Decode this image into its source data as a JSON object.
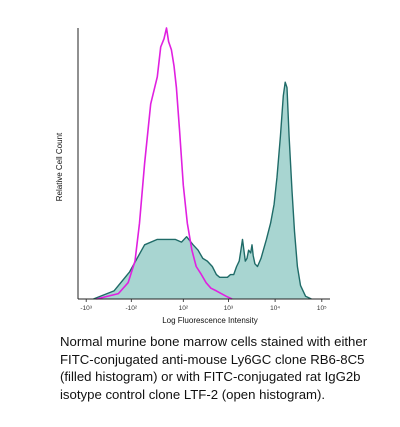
{
  "chart_data": {
    "type": "area",
    "xlabel": "Log Fluorescence Intensity",
    "ylabel": "Relative Cell Count",
    "x_scale": "biexponential",
    "x_ticks": [
      {
        "value": -1000,
        "label": "-10³"
      },
      {
        "value": -100,
        "label": "-10²"
      },
      {
        "value": 100,
        "label": "10²"
      },
      {
        "value": 1000,
        "label": "10³"
      },
      {
        "value": 10000,
        "label": "10⁴"
      },
      {
        "value": 100000,
        "label": "10⁵"
      }
    ],
    "ylim": [
      0,
      100
    ],
    "grid": false,
    "series": [
      {
        "style": "filled",
        "fill": "#a8d5d1",
        "stroke": "#1f6b68",
        "points": [
          [
            -700,
            0
          ],
          [
            -250,
            3
          ],
          [
            -110,
            10
          ],
          [
            -40,
            20
          ],
          [
            0,
            22
          ],
          [
            60,
            22
          ],
          [
            90,
            21
          ],
          [
            120,
            23
          ],
          [
            170,
            20
          ],
          [
            220,
            18
          ],
          [
            280,
            15
          ],
          [
            350,
            14
          ],
          [
            450,
            12
          ],
          [
            550,
            9
          ],
          [
            650,
            8
          ],
          [
            800,
            8
          ],
          [
            950,
            8
          ],
          [
            1100,
            9
          ],
          [
            1300,
            9
          ],
          [
            1500,
            12
          ],
          [
            1700,
            14
          ],
          [
            1850,
            18
          ],
          [
            2000,
            22
          ],
          [
            2150,
            18
          ],
          [
            2300,
            14
          ],
          [
            2500,
            15
          ],
          [
            2700,
            18
          ],
          [
            3000,
            17
          ],
          [
            3200,
            20
          ],
          [
            3400,
            16
          ],
          [
            3700,
            13
          ],
          [
            4200,
            12
          ],
          [
            5000,
            15
          ],
          [
            6500,
            22
          ],
          [
            8000,
            28
          ],
          [
            9500,
            35
          ],
          [
            11000,
            45
          ],
          [
            13000,
            60
          ],
          [
            15000,
            75
          ],
          [
            16500,
            80
          ],
          [
            18000,
            78
          ],
          [
            20000,
            60
          ],
          [
            23000,
            40
          ],
          [
            26000,
            25
          ],
          [
            30000,
            12
          ],
          [
            35000,
            5
          ],
          [
            45000,
            1
          ],
          [
            60000,
            0
          ]
        ]
      },
      {
        "style": "open",
        "stroke": "#e020e0",
        "points": [
          [
            -600,
            0
          ],
          [
            -200,
            2
          ],
          [
            -120,
            6
          ],
          [
            -80,
            14
          ],
          [
            -60,
            28
          ],
          [
            -40,
            50
          ],
          [
            -20,
            72
          ],
          [
            0,
            82
          ],
          [
            10,
            93
          ],
          [
            20,
            96
          ],
          [
            28,
            100
          ],
          [
            35,
            95
          ],
          [
            45,
            92
          ],
          [
            55,
            86
          ],
          [
            65,
            78
          ],
          [
            80,
            62
          ],
          [
            100,
            42
          ],
          [
            125,
            28
          ],
          [
            160,
            18
          ],
          [
            200,
            12
          ],
          [
            260,
            9
          ],
          [
            330,
            6
          ],
          [
            420,
            4
          ],
          [
            550,
            3
          ],
          [
            700,
            2
          ],
          [
            900,
            1
          ],
          [
            1200,
            0
          ]
        ]
      }
    ]
  },
  "caption": "Normal murine bone marrow cells stained with either FITC-conjugated anti-mouse Ly6GC clone RB6-8C5 (filled histogram) or with FITC-conjugated rat IgG2b isotype control clone LTF-2 (open histogram)."
}
